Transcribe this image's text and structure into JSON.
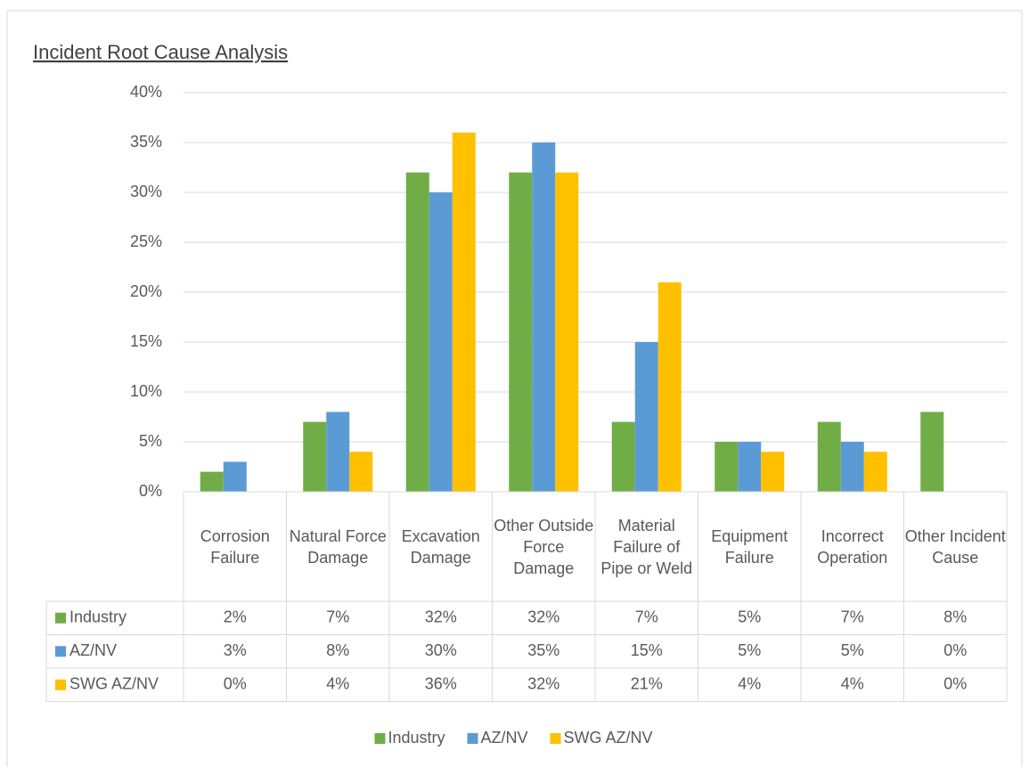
{
  "chart_data": {
    "type": "bar",
    "title": "Incident Root Cause Analysis",
    "categories": [
      "Corrosion Failure",
      "Natural Force Damage",
      "Excavation Damage",
      "Other Outside Force Damage",
      "Material Failure of Pipe or Weld",
      "Equipment Failure",
      "Incorrect Operation",
      "Other Incident Cause"
    ],
    "series": [
      {
        "name": "Industry",
        "color": "#70ad47",
        "values": [
          2,
          7,
          32,
          32,
          7,
          5,
          7,
          8
        ],
        "value_labels": [
          "2%",
          "7%",
          "32%",
          "32%",
          "7%",
          "5%",
          "7%",
          "8%"
        ]
      },
      {
        "name": "AZ/NV",
        "color": "#5b9bd5",
        "values": [
          3,
          8,
          30,
          35,
          15,
          5,
          5,
          0
        ],
        "value_labels": [
          "3%",
          "8%",
          "30%",
          "35%",
          "15%",
          "5%",
          "5%",
          "0%"
        ]
      },
      {
        "name": "SWG AZ/NV",
        "color": "#ffc000",
        "values": [
          0,
          4,
          36,
          32,
          21,
          4,
          4,
          0
        ],
        "value_labels": [
          "0%",
          "4%",
          "36%",
          "32%",
          "21%",
          "4%",
          "4%",
          "0%"
        ]
      }
    ],
    "ylim": [
      0,
      40
    ],
    "yticks": [
      {
        "value": 0,
        "label": "0%"
      },
      {
        "value": 5,
        "label": "5%"
      },
      {
        "value": 10,
        "label": "10%"
      },
      {
        "value": 15,
        "label": "15%"
      },
      {
        "value": 20,
        "label": "20%"
      },
      {
        "value": 25,
        "label": "25%"
      },
      {
        "value": 30,
        "label": "30%"
      },
      {
        "value": 35,
        "label": "35%"
      },
      {
        "value": 40,
        "label": "40%"
      }
    ],
    "grid": true,
    "legend": "bottom"
  }
}
